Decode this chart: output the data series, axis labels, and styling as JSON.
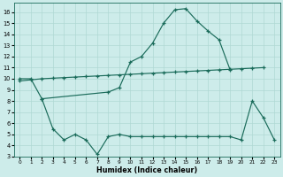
{
  "xlabel": "Humidex (Indice chaleur)",
  "background_color": "#cdecea",
  "line_color": "#1a6b5a",
  "grid_color": "#b0d8d4",
  "xlim": [
    -0.5,
    23.5
  ],
  "ylim": [
    3,
    16.8
  ],
  "yticks": [
    3,
    4,
    5,
    6,
    7,
    8,
    9,
    10,
    11,
    12,
    13,
    14,
    15,
    16
  ],
  "xticks": [
    0,
    1,
    2,
    3,
    4,
    5,
    6,
    7,
    8,
    9,
    10,
    11,
    12,
    13,
    14,
    15,
    16,
    17,
    18,
    19,
    20,
    21,
    22,
    23
  ],
  "curve_bell_x": [
    0,
    1,
    2,
    8,
    9,
    10,
    11,
    12,
    13,
    14,
    15,
    16,
    17,
    18,
    19
  ],
  "curve_bell_y": [
    10.0,
    10.0,
    8.2,
    8.8,
    9.2,
    11.5,
    12.0,
    13.2,
    15.0,
    16.2,
    16.3,
    15.2,
    14.3,
    13.5,
    10.8
  ],
  "curve_flat_x": [
    0,
    1,
    2,
    3,
    4,
    5,
    6,
    7,
    8,
    9,
    10,
    11,
    12,
    13,
    14,
    15,
    16,
    17,
    18,
    19,
    20,
    21,
    22
  ],
  "curve_flat_y": [
    9.8,
    9.9,
    10.0,
    10.05,
    10.1,
    10.15,
    10.2,
    10.25,
    10.3,
    10.35,
    10.4,
    10.45,
    10.5,
    10.55,
    10.6,
    10.65,
    10.7,
    10.75,
    10.8,
    10.85,
    10.9,
    10.95,
    11.0
  ],
  "curve_low_x": [
    2,
    3,
    4,
    5,
    6,
    7,
    8,
    9,
    10,
    11,
    12,
    13,
    14,
    15,
    16,
    17,
    18,
    19,
    20,
    21,
    22,
    23
  ],
  "curve_low_y": [
    8.2,
    5.5,
    4.5,
    5.0,
    4.5,
    3.2,
    4.8,
    5.0,
    4.8,
    4.8,
    4.8,
    4.8,
    4.8,
    4.8,
    4.8,
    4.8,
    4.8,
    4.8,
    4.5,
    8.0,
    6.5,
    4.5
  ]
}
